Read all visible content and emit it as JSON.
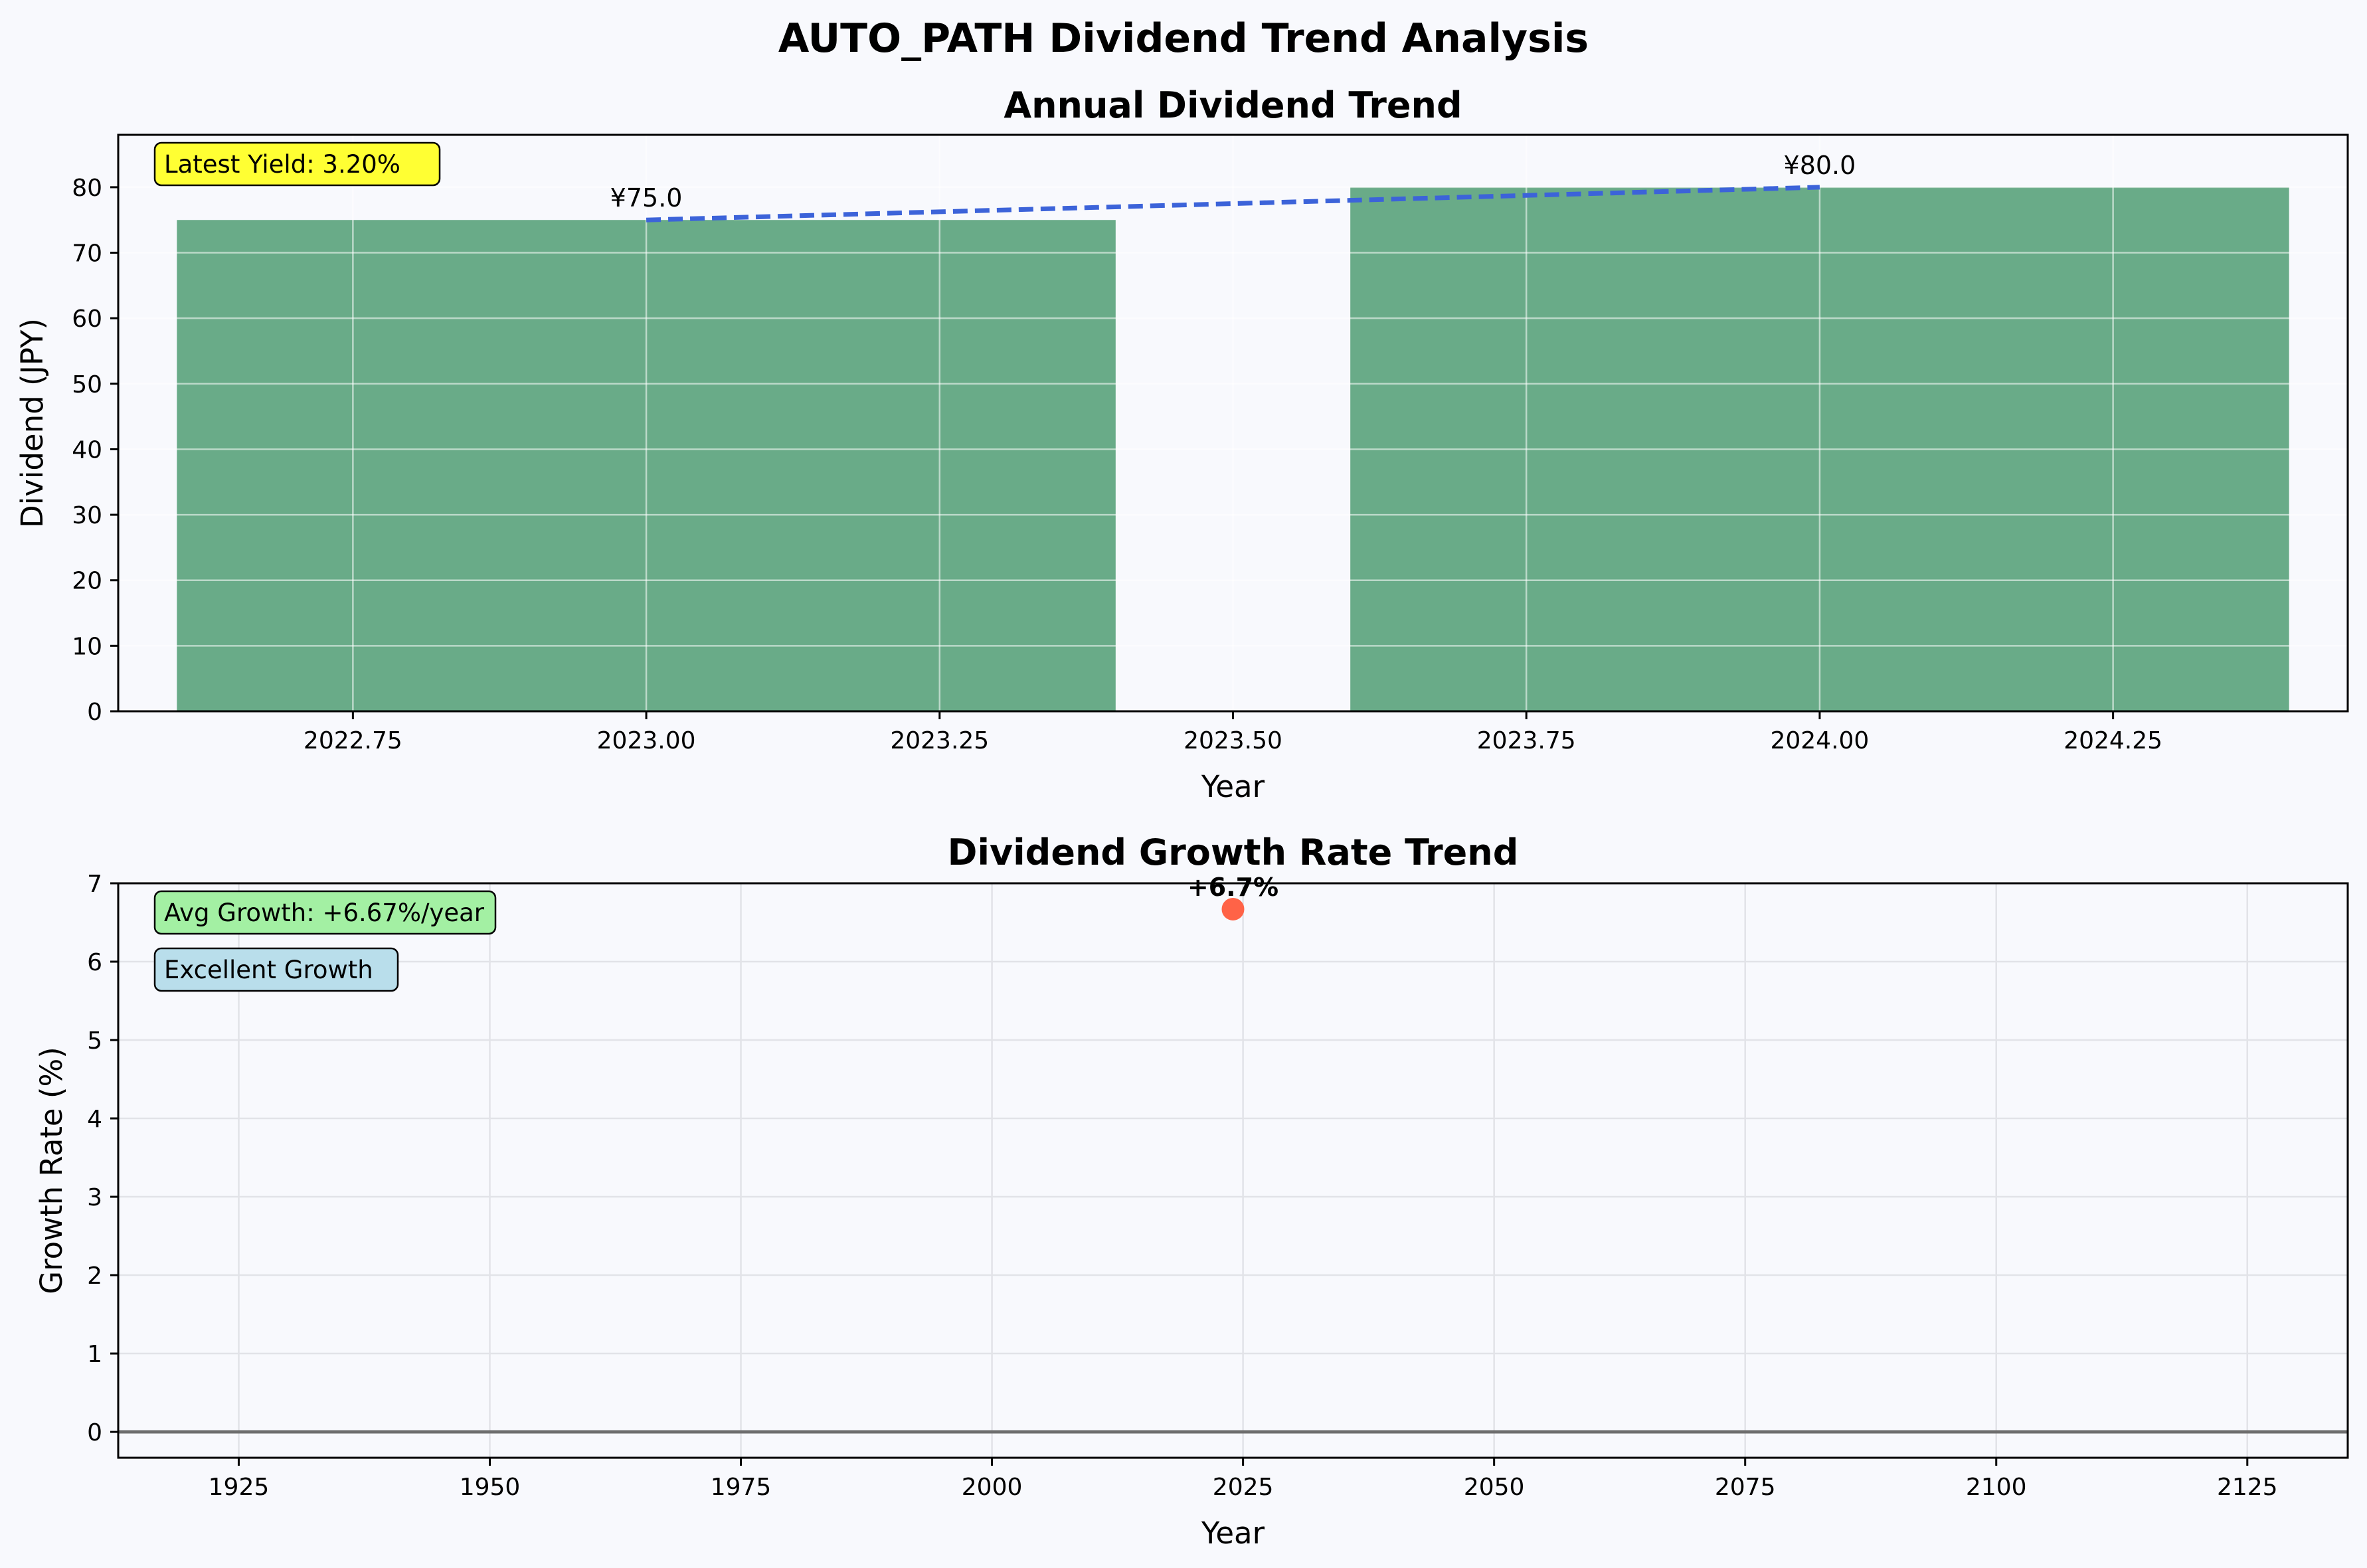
{
  "figure_title": "AUTO_PATH Dividend Trend Analysis",
  "chart_data": [
    {
      "type": "bar",
      "title": "Annual Dividend Trend",
      "xlabel": "Year",
      "ylabel": "Dividend (JPY)",
      "x": [
        2023,
        2024
      ],
      "values": [
        75.0,
        80.0
      ],
      "bar_width": 0.8,
      "bar_color": "#69ab88",
      "trend_line": {
        "style": "dashed",
        "color": "#3c63d9",
        "x": [
          2023,
          2024
        ],
        "y": [
          75.0,
          80.0
        ]
      },
      "data_labels": [
        "¥75.0",
        "¥80.0"
      ],
      "xlim": [
        2022.55,
        2024.45
      ],
      "ylim": [
        0,
        88
      ],
      "xticks": [
        2022.75,
        2023.0,
        2023.25,
        2023.5,
        2023.75,
        2024.0,
        2024.25
      ],
      "xtick_labels": [
        "2022.75",
        "2023.00",
        "2023.25",
        "2023.50",
        "2023.75",
        "2024.00",
        "2024.25"
      ],
      "yticks": [
        0,
        10,
        20,
        30,
        40,
        50,
        60,
        70,
        80
      ],
      "ytick_labels": [
        "0",
        "10",
        "20",
        "30",
        "40",
        "50",
        "60",
        "70",
        "80"
      ],
      "grid": true,
      "annotation": {
        "text": "Latest Yield: 3.20%",
        "color": "#ffff33",
        "placement": "top-left"
      }
    },
    {
      "type": "scatter",
      "title": "Dividend Growth Rate Trend",
      "xlabel": "Year",
      "ylabel": "Growth Rate (%)",
      "x": [
        2024
      ],
      "values": [
        6.67
      ],
      "point_color": "#ff6347",
      "data_labels": [
        "+6.7%"
      ],
      "xlim": [
        1913,
        2135
      ],
      "ylim": [
        -0.33,
        7
      ],
      "xticks": [
        1925,
        1950,
        1975,
        2000,
        2025,
        2050,
        2075,
        2100,
        2125
      ],
      "xtick_labels": [
        "1925",
        "1950",
        "1975",
        "2000",
        "2025",
        "2050",
        "2075",
        "2100",
        "2125"
      ],
      "yticks": [
        0,
        1,
        2,
        3,
        4,
        5,
        6,
        7
      ],
      "ytick_labels": [
        "0",
        "1",
        "2",
        "3",
        "4",
        "5",
        "6",
        "7"
      ],
      "zero_line": true,
      "grid": true,
      "annotations": [
        {
          "text": "Avg Growth: +6.67%/year",
          "color": "#a3f0a3",
          "placement": "top-left"
        },
        {
          "text": "Excellent Growth",
          "color": "#b9deeb",
          "placement": "top-left"
        }
      ]
    }
  ]
}
